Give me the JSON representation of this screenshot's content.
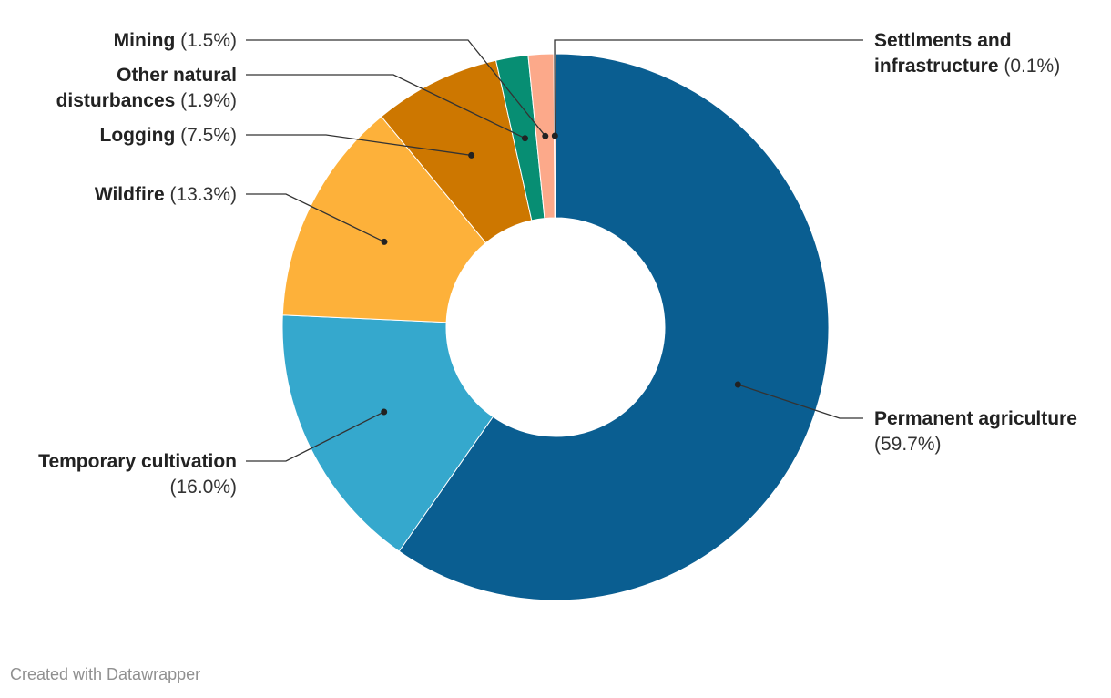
{
  "chart_data": {
    "type": "pie",
    "variant": "donut",
    "unit": "%",
    "slices": [
      {
        "label": "Permanent agriculture",
        "value": 59.7,
        "pct_text": "(59.7%)",
        "color": "#0a5e91"
      },
      {
        "label": "Temporary cultivation",
        "value": 16.0,
        "pct_text": "(16.0%)",
        "color": "#35a8cd"
      },
      {
        "label": "Wildfire",
        "value": 13.3,
        "pct_text": "(13.3%)",
        "color": "#fdb13a"
      },
      {
        "label": "Logging",
        "value": 7.5,
        "pct_text": "(7.5%)",
        "color": "#cd7700"
      },
      {
        "label": "Other natural disturbances",
        "value": 1.9,
        "pct_text": "(1.9%)",
        "color": "#078e73"
      },
      {
        "label": "Mining",
        "value": 1.5,
        "pct_text": "(1.5%)",
        "color": "#fca98a"
      },
      {
        "label": "Settlments and infrastructure",
        "value": 0.1,
        "pct_text": "(0.1%)",
        "color": "#f0835a"
      }
    ]
  },
  "credit": "Created with Datawrapper"
}
